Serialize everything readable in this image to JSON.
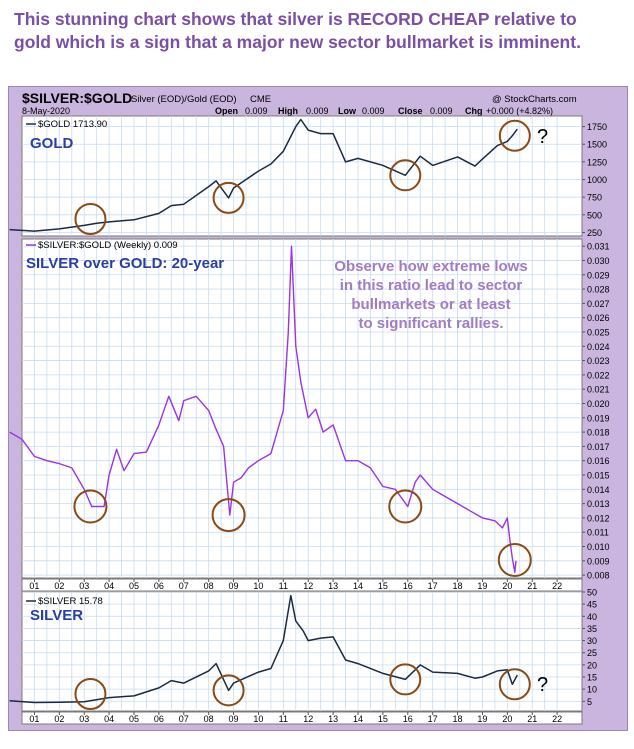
{
  "headline": {
    "line1": "This stunning chart shows that silver is RECORD CHEAP relative to",
    "line2": "gold which is a sign that a major new sector bullmarket is imminent."
  },
  "header": {
    "symbol": "$SILVER:$GOLD",
    "description": "Silver (EOD)/Gold (EOD)",
    "exchange": "CME",
    "credit": "@ StockCharts.com",
    "date": "8-May-2020",
    "open_label": "Open",
    "open_value": "0.009",
    "high_label": "High",
    "high_value": "0.009",
    "low_label": "Low",
    "low_value": "0.009",
    "close_label": "Close",
    "close_value": "0.009",
    "chg_label": "Chg",
    "chg_value": "+0.000 (+4.82%)"
  },
  "colors": {
    "gold_line": "#1a2a44",
    "ratio_line": "#9a33e6",
    "circle": "#8b4a14",
    "grid": "#c8dcf0",
    "label_text": "#2a3fa0",
    "observe_text": "#9f7cc4"
  },
  "annotations": {
    "gold_title": "GOLD",
    "ratio_title": "SILVER over GOLD: 20-year",
    "silver_title": "SILVER",
    "observe": [
      "Observe how extreme lows",
      "in this ratio lead to sector",
      "bullmarkets or at least",
      "to significant rallies."
    ],
    "question_mark": "?"
  },
  "chart_data": [
    {
      "type": "line",
      "title": "GOLD",
      "legend": "$GOLD 1713.90",
      "ylim": [
        200,
        1900
      ],
      "yticks": [
        "250",
        "500",
        "750",
        "1000",
        "1250",
        "1500",
        "1750"
      ],
      "x": [
        2000.0,
        2001.0,
        2002.0,
        2003.0,
        2003.5,
        2004.0,
        2005.0,
        2006.0,
        2006.5,
        2007.0,
        2008.0,
        2008.3,
        2008.8,
        2009.0,
        2010.0,
        2010.5,
        2011.0,
        2011.5,
        2011.7,
        2012.0,
        2012.5,
        2013.0,
        2013.5,
        2014.0,
        2015.0,
        2015.9,
        2016.5,
        2017.0,
        2018.0,
        2018.7,
        2019.0,
        2019.6,
        2020.0,
        2020.2,
        2020.4
      ],
      "series": [
        {
          "name": "$GOLD",
          "values": [
            290,
            270,
            300,
            350,
            380,
            400,
            430,
            520,
            630,
            650,
            900,
            980,
            740,
            880,
            1120,
            1220,
            1400,
            1750,
            1850,
            1700,
            1650,
            1650,
            1250,
            1300,
            1200,
            1060,
            1330,
            1200,
            1320,
            1190,
            1290,
            1480,
            1540,
            1620,
            1714
          ]
        }
      ],
      "circles_at_x": [
        2003.25,
        2008.8,
        2015.9,
        2020.3
      ]
    },
    {
      "type": "line",
      "title": "SILVER over GOLD: 20-year",
      "legend": "$SILVER:$GOLD (Weekly) 0.009",
      "ylim": [
        0.0078,
        0.0315
      ],
      "yticks": [
        "0.008",
        "0.009",
        "0.010",
        "0.011",
        "0.012",
        "0.013",
        "0.014",
        "0.015",
        "0.016",
        "0.017",
        "0.018",
        "0.019",
        "0.020",
        "0.021",
        "0.022",
        "0.023",
        "0.024",
        "0.025",
        "0.026",
        "0.027",
        "0.028",
        "0.029",
        "0.030",
        "0.031"
      ],
      "x": [
        2000.0,
        2000.5,
        2001.0,
        2001.5,
        2002.0,
        2002.5,
        2003.0,
        2003.3,
        2003.8,
        2004.0,
        2004.3,
        2004.6,
        2005.0,
        2005.5,
        2006.0,
        2006.4,
        2006.8,
        2007.0,
        2007.5,
        2008.0,
        2008.3,
        2008.6,
        2008.85,
        2009.0,
        2009.3,
        2009.6,
        2010.0,
        2010.5,
        2011.0,
        2011.2,
        2011.33,
        2011.5,
        2011.7,
        2012.0,
        2012.3,
        2012.6,
        2013.0,
        2013.5,
        2014.0,
        2014.5,
        2015.0,
        2015.5,
        2016.0,
        2016.3,
        2016.5,
        2017.0,
        2017.5,
        2018.0,
        2018.5,
        2019.0,
        2019.5,
        2019.8,
        2020.0,
        2020.1,
        2020.2,
        2020.3,
        2020.35
      ],
      "series": [
        {
          "name": "$SILVER:$GOLD (Weekly)",
          "values": [
            0.018,
            0.0175,
            0.0163,
            0.016,
            0.0158,
            0.0155,
            0.014,
            0.0128,
            0.0128,
            0.015,
            0.0168,
            0.0153,
            0.0165,
            0.0166,
            0.0185,
            0.0205,
            0.0188,
            0.0202,
            0.0205,
            0.0195,
            0.0182,
            0.017,
            0.0122,
            0.0145,
            0.0148,
            0.0155,
            0.016,
            0.0165,
            0.0195,
            0.025,
            0.031,
            0.024,
            0.0215,
            0.019,
            0.0196,
            0.018,
            0.0185,
            0.016,
            0.016,
            0.0155,
            0.0142,
            0.014,
            0.0128,
            0.0145,
            0.015,
            0.014,
            0.0135,
            0.013,
            0.0125,
            0.012,
            0.0118,
            0.0113,
            0.012,
            0.0105,
            0.0092,
            0.0082,
            0.009
          ]
        }
      ],
      "circles_at_x": [
        2003.25,
        2008.8,
        2015.9,
        2020.3
      ]
    },
    {
      "type": "line",
      "title": "SILVER",
      "legend": "$SILVER 15.78",
      "ylim": [
        1,
        50
      ],
      "yticks": [
        "5",
        "10",
        "15",
        "20",
        "25",
        "30",
        "35",
        "40",
        "45",
        "50"
      ],
      "x": [
        2000.0,
        2001.0,
        2002.0,
        2003.0,
        2004.0,
        2005.0,
        2006.0,
        2006.5,
        2007.0,
        2008.0,
        2008.3,
        2008.8,
        2009.0,
        2010.0,
        2010.5,
        2011.0,
        2011.3,
        2011.5,
        2011.8,
        2012.0,
        2012.5,
        2013.0,
        2013.5,
        2014.0,
        2015.0,
        2015.9,
        2016.5,
        2017.0,
        2018.0,
        2018.7,
        2019.0,
        2019.6,
        2020.0,
        2020.2,
        2020.4
      ],
      "series": [
        {
          "name": "$SILVER",
          "values": [
            5.2,
            4.5,
            4.6,
            4.8,
            6.5,
            7.2,
            10.5,
            13.5,
            12.5,
            17.5,
            20.5,
            9.5,
            12.5,
            17.0,
            18.5,
            30.0,
            48.5,
            38.0,
            34.0,
            30.0,
            31.0,
            31.5,
            22.0,
            20.5,
            16.5,
            14.0,
            20.0,
            17.0,
            16.5,
            14.5,
            15.0,
            17.5,
            18.0,
            12.0,
            15.8
          ]
        }
      ],
      "circles_at_x": [
        2003.25,
        2008.8,
        2015.9,
        2020.3
      ]
    }
  ],
  "x_axis": {
    "labels": [
      "01",
      "02",
      "03",
      "04",
      "05",
      "06",
      "07",
      "08",
      "09",
      "10",
      "11",
      "12",
      "13",
      "14",
      "15",
      "16",
      "17",
      "18",
      "19",
      "20",
      "21",
      "22"
    ],
    "range": [
      2000.5,
      2023.0
    ]
  }
}
